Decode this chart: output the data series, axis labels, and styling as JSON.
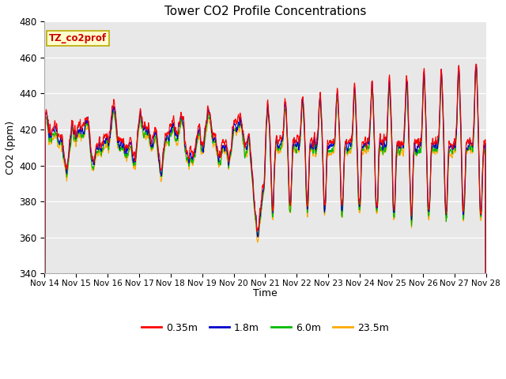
{
  "title": "Tower CO2 Profile Concentrations",
  "xlabel": "Time",
  "ylabel": "CO2 (ppm)",
  "ylim": [
    340,
    480
  ],
  "yticks": [
    340,
    360,
    380,
    400,
    420,
    440,
    460,
    480
  ],
  "series_colors": [
    "#ff0000",
    "#0000cc",
    "#00bb00",
    "#ffaa00"
  ],
  "series_labels": [
    "0.35m",
    "1.8m",
    "6.0m",
    "23.5m"
  ],
  "xtick_labels": [
    "Nov 14",
    "Nov 15",
    "Nov 16",
    "Nov 17",
    "Nov 18",
    "Nov 19",
    "Nov 20",
    "Nov 21",
    "Nov 22",
    "Nov 23",
    "Nov 24",
    "Nov 25",
    "Nov 26",
    "Nov 27",
    "Nov 28"
  ],
  "annotation_text": "TZ_co2prof",
  "plot_background": "#e8e8e8",
  "grid_color": "#ffffff",
  "linewidth": 0.8,
  "n_points": 2000,
  "figsize": [
    6.4,
    4.8
  ],
  "dpi": 100
}
